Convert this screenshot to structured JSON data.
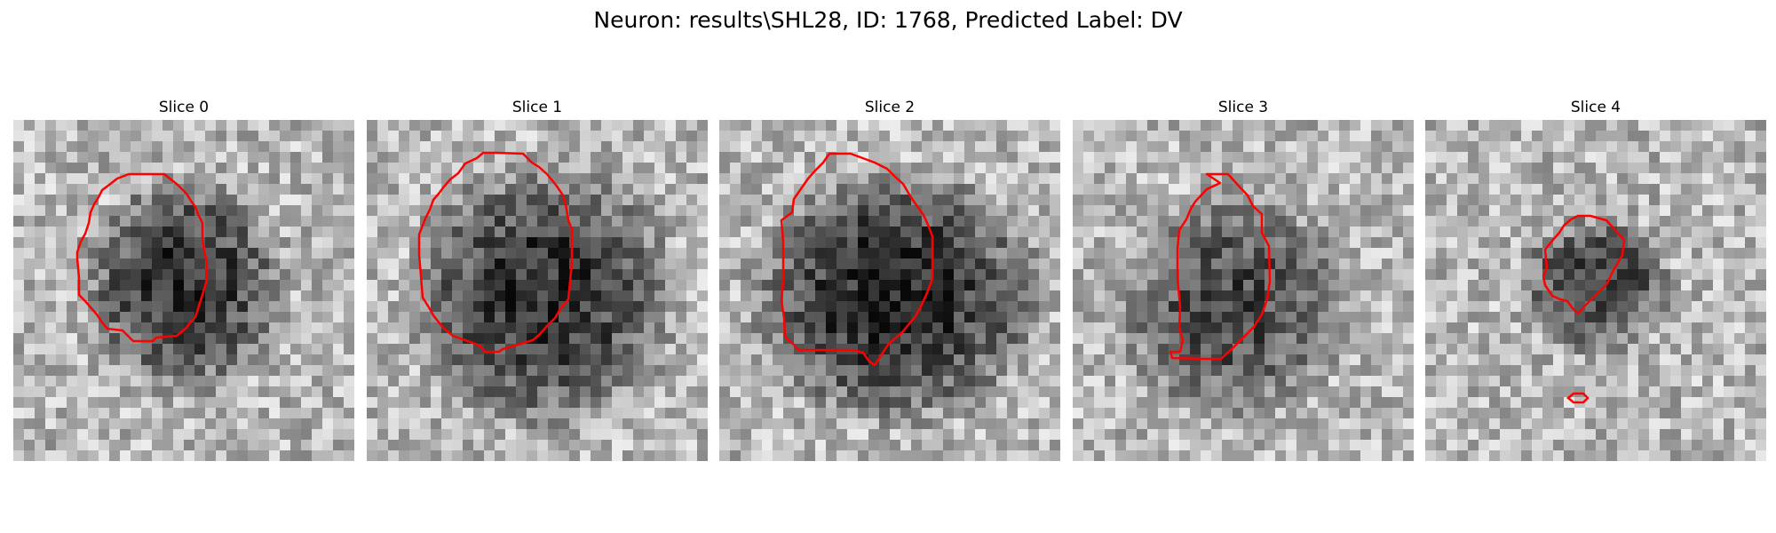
{
  "figure": {
    "title": "Neuron: results\\SHL28, ID: 1768, Predicted Label: DV"
  },
  "panels": [
    {
      "title": "Slice 0"
    },
    {
      "title": "Slice 1"
    },
    {
      "title": "Slice 2"
    },
    {
      "title": "Slice 3"
    },
    {
      "title": "Slice 4"
    }
  ],
  "colors": {
    "contour": "#ff0000",
    "colormap": "gray"
  }
}
